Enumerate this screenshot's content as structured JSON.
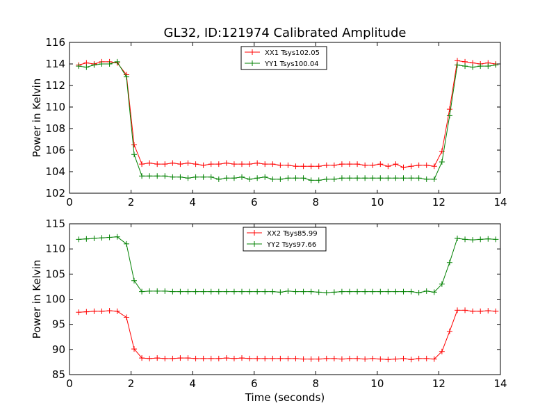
{
  "chart_data": [
    {
      "type": "line",
      "title": "GL32, ID:121974 Calibrated Amplitude",
      "xlabel": "",
      "ylabel": "Power in Kelvin",
      "xlim": [
        0,
        14
      ],
      "ylim": [
        102,
        116
      ],
      "xticks": [
        "0",
        "2",
        "4",
        "6",
        "8",
        "10",
        "12",
        "14"
      ],
      "yticks": [
        "102",
        "104",
        "106",
        "108",
        "110",
        "112",
        "114",
        "116"
      ],
      "grid": false,
      "legend": "top-center",
      "marker": "+",
      "series": [
        {
          "name": "XX1 Tsys102.05",
          "color": "#ff0000",
          "x": [
            0.3,
            0.55,
            0.8,
            1.05,
            1.3,
            1.55,
            1.85,
            2.1,
            2.35,
            2.6,
            2.85,
            3.1,
            3.35,
            3.6,
            3.85,
            4.1,
            4.35,
            4.6,
            4.85,
            5.1,
            5.35,
            5.6,
            5.85,
            6.1,
            6.35,
            6.6,
            6.85,
            7.1,
            7.35,
            7.6,
            7.85,
            8.1,
            8.35,
            8.6,
            8.85,
            9.1,
            9.35,
            9.6,
            9.85,
            10.1,
            10.35,
            10.6,
            10.85,
            11.1,
            11.35,
            11.6,
            11.85,
            12.1,
            12.35,
            12.6,
            12.85,
            13.1,
            13.35,
            13.6,
            13.85
          ],
          "y": [
            113.9,
            114.1,
            114.0,
            114.2,
            114.2,
            114.1,
            113.0,
            106.5,
            104.7,
            104.8,
            104.7,
            104.7,
            104.8,
            104.7,
            104.8,
            104.7,
            104.6,
            104.7,
            104.7,
            104.8,
            104.7,
            104.7,
            104.7,
            104.8,
            104.7,
            104.7,
            104.6,
            104.6,
            104.5,
            104.5,
            104.5,
            104.5,
            104.6,
            104.6,
            104.7,
            104.7,
            104.7,
            104.6,
            104.6,
            104.7,
            104.5,
            104.7,
            104.4,
            104.5,
            104.6,
            104.6,
            104.5,
            105.9,
            109.8,
            114.3,
            114.2,
            114.1,
            114.0,
            114.1,
            114.0
          ]
        },
        {
          "name": "YY1 Tsys100.04",
          "color": "#008000",
          "x": [
            0.3,
            0.55,
            0.8,
            1.05,
            1.3,
            1.55,
            1.85,
            2.1,
            2.35,
            2.6,
            2.85,
            3.1,
            3.35,
            3.6,
            3.85,
            4.1,
            4.35,
            4.6,
            4.85,
            5.1,
            5.35,
            5.6,
            5.85,
            6.1,
            6.35,
            6.6,
            6.85,
            7.1,
            7.35,
            7.6,
            7.85,
            8.1,
            8.35,
            8.6,
            8.85,
            9.1,
            9.35,
            9.6,
            9.85,
            10.1,
            10.35,
            10.6,
            10.85,
            11.1,
            11.35,
            11.6,
            11.85,
            12.1,
            12.35,
            12.6,
            12.85,
            13.1,
            13.35,
            13.6,
            13.85
          ],
          "y": [
            113.8,
            113.7,
            113.9,
            114.0,
            114.0,
            114.2,
            112.8,
            105.6,
            103.6,
            103.6,
            103.6,
            103.6,
            103.5,
            103.5,
            103.4,
            103.5,
            103.5,
            103.5,
            103.3,
            103.4,
            103.4,
            103.5,
            103.3,
            103.4,
            103.5,
            103.3,
            103.3,
            103.4,
            103.4,
            103.4,
            103.2,
            103.2,
            103.3,
            103.3,
            103.4,
            103.4,
            103.4,
            103.4,
            103.4,
            103.4,
            103.4,
            103.4,
            103.4,
            103.4,
            103.4,
            103.3,
            103.3,
            104.9,
            109.2,
            113.9,
            113.8,
            113.7,
            113.8,
            113.8,
            113.9
          ]
        }
      ]
    },
    {
      "type": "line",
      "title": "",
      "xlabel": "Time (seconds)",
      "ylabel": "Power in Kelvin",
      "xlim": [
        0,
        14
      ],
      "ylim": [
        85,
        115
      ],
      "xticks": [
        "0",
        "2",
        "4",
        "6",
        "8",
        "10",
        "12",
        "14"
      ],
      "yticks": [
        "85",
        "90",
        "95",
        "100",
        "105",
        "110",
        "115"
      ],
      "grid": false,
      "legend": "top-center",
      "marker": "+",
      "series": [
        {
          "name": "XX2 Tsys85.99",
          "color": "#ff0000",
          "x": [
            0.3,
            0.55,
            0.8,
            1.05,
            1.3,
            1.55,
            1.85,
            2.1,
            2.35,
            2.6,
            2.85,
            3.1,
            3.35,
            3.6,
            3.85,
            4.1,
            4.35,
            4.6,
            4.85,
            5.1,
            5.35,
            5.6,
            5.85,
            6.1,
            6.35,
            6.6,
            6.85,
            7.1,
            7.35,
            7.6,
            7.85,
            8.1,
            8.35,
            8.6,
            8.85,
            9.1,
            9.35,
            9.6,
            9.85,
            10.1,
            10.35,
            10.6,
            10.85,
            11.1,
            11.35,
            11.6,
            11.85,
            12.1,
            12.35,
            12.6,
            12.85,
            13.1,
            13.35,
            13.6,
            13.85
          ],
          "y": [
            97.4,
            97.5,
            97.6,
            97.6,
            97.7,
            97.6,
            96.4,
            90.1,
            88.3,
            88.2,
            88.3,
            88.2,
            88.2,
            88.3,
            88.3,
            88.2,
            88.2,
            88.2,
            88.2,
            88.3,
            88.2,
            88.3,
            88.2,
            88.2,
            88.2,
            88.2,
            88.2,
            88.2,
            88.2,
            88.1,
            88.1,
            88.1,
            88.2,
            88.2,
            88.1,
            88.2,
            88.2,
            88.1,
            88.2,
            88.1,
            88.0,
            88.1,
            88.2,
            88.0,
            88.2,
            88.2,
            88.1,
            89.6,
            93.6,
            97.8,
            97.8,
            97.6,
            97.6,
            97.7,
            97.6
          ]
        },
        {
          "name": "YY2 Tsys97.66",
          "color": "#008000",
          "x": [
            0.3,
            0.55,
            0.8,
            1.05,
            1.3,
            1.55,
            1.85,
            2.1,
            2.35,
            2.6,
            2.85,
            3.1,
            3.35,
            3.6,
            3.85,
            4.1,
            4.35,
            4.6,
            4.85,
            5.1,
            5.35,
            5.6,
            5.85,
            6.1,
            6.35,
            6.6,
            6.85,
            7.1,
            7.35,
            7.6,
            7.85,
            8.1,
            8.35,
            8.6,
            8.85,
            9.1,
            9.35,
            9.6,
            9.85,
            10.1,
            10.35,
            10.6,
            10.85,
            11.1,
            11.35,
            11.6,
            11.85,
            12.1,
            12.35,
            12.6,
            12.85,
            13.1,
            13.35,
            13.6,
            13.85
          ],
          "y": [
            111.9,
            112.0,
            112.1,
            112.2,
            112.3,
            112.4,
            111.0,
            103.7,
            101.5,
            101.6,
            101.6,
            101.6,
            101.5,
            101.5,
            101.5,
            101.5,
            101.5,
            101.5,
            101.5,
            101.5,
            101.5,
            101.5,
            101.5,
            101.5,
            101.5,
            101.5,
            101.4,
            101.6,
            101.5,
            101.5,
            101.5,
            101.4,
            101.3,
            101.4,
            101.5,
            101.5,
            101.5,
            101.5,
            101.5,
            101.5,
            101.5,
            101.5,
            101.5,
            101.5,
            101.3,
            101.6,
            101.4,
            103.0,
            107.3,
            112.1,
            111.9,
            111.8,
            111.9,
            112.0,
            111.9
          ]
        }
      ]
    }
  ]
}
